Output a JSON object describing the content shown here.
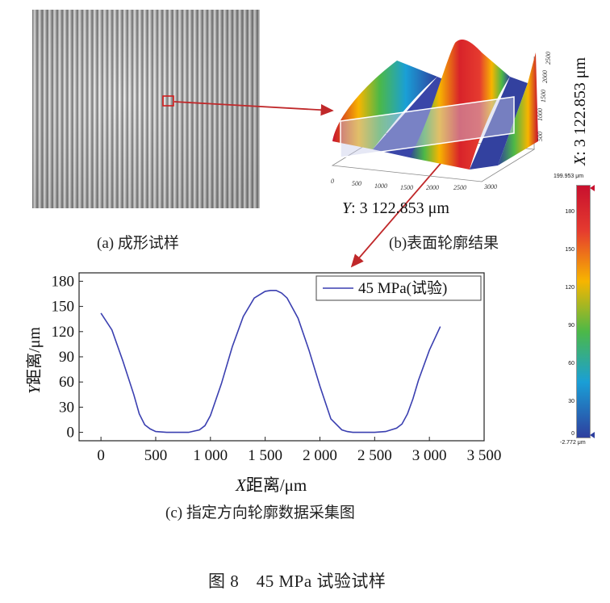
{
  "panel_a": {
    "caption": "(a) 成形试样"
  },
  "panel_b": {
    "caption": "(b)表面轮廓结果",
    "x_label_var": "X",
    "x_label_value": ": 3 122.853 μm",
    "y_label_var": "Y",
    "y_label_value": ": 3 122.853 μm",
    "axis_ticks_front": [
      "0",
      "500",
      "1000",
      "1500",
      "2000",
      "2500",
      "3000"
    ],
    "axis_ticks_side": [
      "0",
      "500",
      "1000",
      "1500",
      "2000",
      "2500",
      "3000"
    ],
    "colorbar": {
      "max_label": "199.953 μm",
      "min_label": "-2.772 μm",
      "ticks": [
        "180",
        "150",
        "120",
        "90",
        "60",
        "30",
        "0"
      ],
      "colors": [
        "#c8102e",
        "#e53b2f",
        "#f7b500",
        "#4cb848",
        "#1a9fd6",
        "#2e3f9e"
      ]
    }
  },
  "panel_c": {
    "caption": "(c) 指定方向轮廓数据采集图",
    "xlabel_var": "X",
    "xlabel_rest": "距离/μm",
    "ylabel_var": "Y",
    "ylabel_rest": "距离/μm"
  },
  "chart_data": {
    "type": "line",
    "title": "",
    "xlabel": "X距离/μm",
    "ylabel": "Y距离/μm",
    "xlim": [
      -200,
      3500
    ],
    "ylim": [
      -10,
      190
    ],
    "x_ticks": [
      0,
      500,
      1000,
      1500,
      2000,
      2500,
      3000,
      3500
    ],
    "x_tick_labels": [
      "0",
      "500",
      "1 000",
      "1 500",
      "2 000",
      "2 500",
      "3 000",
      "3 500"
    ],
    "y_ticks": [
      0,
      30,
      60,
      90,
      120,
      150,
      180
    ],
    "y_tick_labels": [
      "0",
      "30",
      "60",
      "90",
      "120",
      "150",
      "180"
    ],
    "legend": "top-right",
    "series": [
      {
        "name": "45 MPa(试验)",
        "color": "#3a3fb0",
        "x": [
          0,
          100,
          200,
          300,
          350,
          400,
          450,
          500,
          600,
          700,
          800,
          900,
          950,
          1000,
          1100,
          1200,
          1300,
          1400,
          1500,
          1550,
          1600,
          1650,
          1700,
          1800,
          1900,
          2000,
          2100,
          2200,
          2250,
          2300,
          2400,
          2500,
          2600,
          2700,
          2750,
          2800,
          2850,
          2900,
          3000,
          3100
        ],
        "y": [
          142,
          122,
          85,
          45,
          22,
          9,
          4,
          1,
          0,
          0,
          0,
          3,
          8,
          20,
          58,
          102,
          138,
          160,
          168,
          169,
          169,
          166,
          160,
          136,
          98,
          55,
          16,
          3,
          1,
          0,
          0,
          0,
          1,
          5,
          10,
          22,
          40,
          62,
          98,
          126
        ]
      }
    ]
  },
  "figure_caption": "图 8　45 MPa 试验试样"
}
